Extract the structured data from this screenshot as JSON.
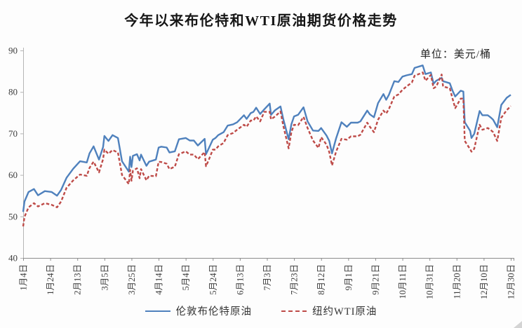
{
  "page": {
    "title": "今年以来布伦特和WTI原油期货价格走势",
    "unit_label": "单位：美元/桶"
  },
  "chart_data": {
    "type": "line",
    "title": "今年以来布伦特和WTI原油期货价格走势",
    "unit": "美元/桶",
    "grid": false,
    "legend_position": "bottom",
    "x_axis": {
      "kind": "date-days-since-first-label",
      "min": 0,
      "max": 360,
      "tick_days": [
        0,
        20,
        40,
        60,
        80,
        100,
        120,
        140,
        160,
        180,
        200,
        220,
        240,
        260,
        280,
        300,
        320,
        340,
        360
      ],
      "tick_labels": [
        "1月4日",
        "1月24日",
        "2月13日",
        "3月5日",
        "3月25日",
        "4月14日",
        "5月4日",
        "5月24日",
        "6月13日",
        "7月3日",
        "7月23日",
        "8月12日",
        "9月1日",
        "9月21日",
        "10月11日",
        "10月31日",
        "11月20日",
        "12月10日",
        "12月30日"
      ]
    },
    "y_axis": {
      "min": 40,
      "max": 90,
      "tick_step": 10,
      "tick_labels": [
        "40",
        "50",
        "60",
        "70",
        "80",
        "90"
      ]
    },
    "series": [
      {
        "key": "brent",
        "name": "伦敦布伦特原油",
        "color": "#4F81BD",
        "style": "solid",
        "points": [
          [
            0,
            51.1
          ],
          [
            1,
            53.6
          ],
          [
            4,
            55.9
          ],
          [
            8,
            56.6
          ],
          [
            11,
            55.1
          ],
          [
            16,
            56.1
          ],
          [
            21,
            55.9
          ],
          [
            25,
            55.0
          ],
          [
            28,
            56.4
          ],
          [
            32,
            59.3
          ],
          [
            37,
            61.5
          ],
          [
            42,
            63.3
          ],
          [
            47,
            63.0
          ],
          [
            49,
            65.2
          ],
          [
            52,
            66.9
          ],
          [
            56,
            63.7
          ],
          [
            59,
            66.7
          ],
          [
            60,
            69.4
          ],
          [
            63,
            68.2
          ],
          [
            66,
            69.6
          ],
          [
            70,
            68.9
          ],
          [
            73,
            63.3
          ],
          [
            78,
            60.8
          ],
          [
            79,
            64.4
          ],
          [
            80,
            61.9
          ],
          [
            81,
            64.6
          ],
          [
            84,
            65.0
          ],
          [
            86,
            63.5
          ],
          [
            87,
            64.9
          ],
          [
            91,
            62.2
          ],
          [
            93,
            63.2
          ],
          [
            98,
            63.7
          ],
          [
            100,
            66.6
          ],
          [
            102,
            66.8
          ],
          [
            106,
            66.6
          ],
          [
            108,
            65.4
          ],
          [
            112,
            65.7
          ],
          [
            115,
            68.6
          ],
          [
            120,
            68.9
          ],
          [
            123,
            68.3
          ],
          [
            126,
            68.3
          ],
          [
            129,
            67.1
          ],
          [
            134,
            68.7
          ],
          [
            135,
            65.0
          ],
          [
            137,
            66.4
          ],
          [
            140,
            68.5
          ],
          [
            142,
            68.9
          ],
          [
            144,
            69.6
          ],
          [
            148,
            70.3
          ],
          [
            151,
            71.9
          ],
          [
            155,
            72.2
          ],
          [
            158,
            72.7
          ],
          [
            163,
            74.4
          ],
          [
            165,
            73.5
          ],
          [
            168,
            74.9
          ],
          [
            170,
            75.2
          ],
          [
            172,
            76.2
          ],
          [
            175,
            74.7
          ],
          [
            178,
            75.8
          ],
          [
            182,
            77.2
          ],
          [
            183,
            74.5
          ],
          [
            186,
            75.6
          ],
          [
            190,
            76.5
          ],
          [
            192,
            73.5
          ],
          [
            196,
            68.6
          ],
          [
            198,
            72.2
          ],
          [
            200,
            74.1
          ],
          [
            203,
            74.5
          ],
          [
            207,
            76.3
          ],
          [
            210,
            72.9
          ],
          [
            214,
            70.7
          ],
          [
            218,
            70.6
          ],
          [
            220,
            71.3
          ],
          [
            224,
            69.5
          ],
          [
            226,
            68.2
          ],
          [
            228,
            65.2
          ],
          [
            231,
            68.8
          ],
          [
            235,
            72.7
          ],
          [
            239,
            71.6
          ],
          [
            242,
            72.6
          ],
          [
            247,
            72.6
          ],
          [
            249,
            72.9
          ],
          [
            254,
            75.5
          ],
          [
            256,
            74.6
          ],
          [
            259,
            73.9
          ],
          [
            262,
            77.3
          ],
          [
            266,
            79.5
          ],
          [
            268,
            78.1
          ],
          [
            270,
            79.3
          ],
          [
            274,
            82.6
          ],
          [
            277,
            82.4
          ],
          [
            280,
            83.7
          ],
          [
            283,
            84.0
          ],
          [
            287,
            84.3
          ],
          [
            289,
            85.8
          ],
          [
            295,
            86.4
          ],
          [
            297,
            84.3
          ],
          [
            301,
            84.7
          ],
          [
            303,
            82.0
          ],
          [
            305,
            82.7
          ],
          [
            309,
            83.4
          ],
          [
            310,
            82.6
          ],
          [
            315,
            82.1
          ],
          [
            317,
            80.3
          ],
          [
            319,
            78.9
          ],
          [
            323,
            80.3
          ],
          [
            325,
            80.1
          ],
          [
            326,
            72.7
          ],
          [
            330,
            70.6
          ],
          [
            331,
            68.9
          ],
          [
            333,
            69.9
          ],
          [
            337,
            75.4
          ],
          [
            339,
            74.4
          ],
          [
            343,
            74.4
          ],
          [
            345,
            73.9
          ],
          [
            347,
            73.3
          ],
          [
            350,
            71.5
          ],
          [
            353,
            76.9
          ],
          [
            357,
            78.6
          ],
          [
            360,
            79.3
          ]
        ]
      },
      {
        "key": "wti",
        "name": "纽约WTI原油",
        "color": "#BE4B48",
        "style": "dashed",
        "points": [
          [
            0,
            47.6
          ],
          [
            1,
            49.9
          ],
          [
            4,
            52.2
          ],
          [
            8,
            53.2
          ],
          [
            11,
            52.4
          ],
          [
            16,
            53.2
          ],
          [
            21,
            52.8
          ],
          [
            25,
            52.2
          ],
          [
            28,
            53.6
          ],
          [
            32,
            56.9
          ],
          [
            37,
            58.7
          ],
          [
            42,
            60.1
          ],
          [
            47,
            59.8
          ],
          [
            49,
            61.7
          ],
          [
            52,
            63.2
          ],
          [
            56,
            60.6
          ],
          [
            59,
            63.8
          ],
          [
            60,
            66.1
          ],
          [
            63,
            65.1
          ],
          [
            66,
            66.0
          ],
          [
            70,
            65.4
          ],
          [
            73,
            60.0
          ],
          [
            78,
            57.8
          ],
          [
            79,
            61.2
          ],
          [
            80,
            58.6
          ],
          [
            81,
            61.0
          ],
          [
            84,
            61.6
          ],
          [
            86,
            59.2
          ],
          [
            87,
            61.4
          ],
          [
            91,
            58.7
          ],
          [
            93,
            59.8
          ],
          [
            98,
            59.7
          ],
          [
            100,
            63.2
          ],
          [
            102,
            63.1
          ],
          [
            106,
            62.7
          ],
          [
            108,
            61.4
          ],
          [
            112,
            62.0
          ],
          [
            115,
            65.0
          ],
          [
            120,
            65.7
          ],
          [
            123,
            64.9
          ],
          [
            126,
            64.9
          ],
          [
            129,
            63.8
          ],
          [
            134,
            65.5
          ],
          [
            135,
            62.1
          ],
          [
            137,
            63.6
          ],
          [
            140,
            66.1
          ],
          [
            142,
            66.1
          ],
          [
            144,
            66.9
          ],
          [
            148,
            67.7
          ],
          [
            151,
            69.6
          ],
          [
            155,
            70.1
          ],
          [
            158,
            70.9
          ],
          [
            163,
            72.1
          ],
          [
            165,
            71.6
          ],
          [
            168,
            73.1
          ],
          [
            170,
            73.1
          ],
          [
            172,
            74.1
          ],
          [
            175,
            72.9
          ],
          [
            178,
            75.2
          ],
          [
            182,
            75.2
          ],
          [
            183,
            73.4
          ],
          [
            186,
            74.1
          ],
          [
            190,
            75.3
          ],
          [
            192,
            71.9
          ],
          [
            196,
            66.4
          ],
          [
            198,
            70.3
          ],
          [
            200,
            72.1
          ],
          [
            203,
            72.0
          ],
          [
            207,
            74.0
          ],
          [
            210,
            71.3
          ],
          [
            214,
            68.3
          ],
          [
            218,
            66.5
          ],
          [
            220,
            69.1
          ],
          [
            224,
            67.3
          ],
          [
            226,
            65.5
          ],
          [
            228,
            62.3
          ],
          [
            231,
            65.6
          ],
          [
            235,
            68.7
          ],
          [
            239,
            68.5
          ],
          [
            242,
            69.3
          ],
          [
            247,
            69.3
          ],
          [
            249,
            69.7
          ],
          [
            254,
            72.6
          ],
          [
            256,
            71.6
          ],
          [
            259,
            70.3
          ],
          [
            262,
            73.3
          ],
          [
            266,
            75.5
          ],
          [
            268,
            74.8
          ],
          [
            270,
            75.9
          ],
          [
            274,
            78.9
          ],
          [
            277,
            79.4
          ],
          [
            280,
            80.5
          ],
          [
            283,
            81.3
          ],
          [
            287,
            82.3
          ],
          [
            289,
            83.9
          ],
          [
            295,
            84.7
          ],
          [
            297,
            82.7
          ],
          [
            301,
            84.1
          ],
          [
            303,
            80.9
          ],
          [
            305,
            81.3
          ],
          [
            309,
            84.2
          ],
          [
            310,
            81.3
          ],
          [
            315,
            80.9
          ],
          [
            317,
            78.4
          ],
          [
            319,
            76.1
          ],
          [
            323,
            78.4
          ],
          [
            325,
            78.4
          ],
          [
            326,
            68.2
          ],
          [
            330,
            66.2
          ],
          [
            331,
            65.6
          ],
          [
            333,
            66.3
          ],
          [
            337,
            72.1
          ],
          [
            339,
            70.9
          ],
          [
            343,
            71.3
          ],
          [
            345,
            70.9
          ],
          [
            347,
            70.3
          ],
          [
            350,
            68.2
          ],
          [
            353,
            73.8
          ],
          [
            357,
            75.6
          ],
          [
            360,
            76.6
          ]
        ]
      }
    ]
  }
}
